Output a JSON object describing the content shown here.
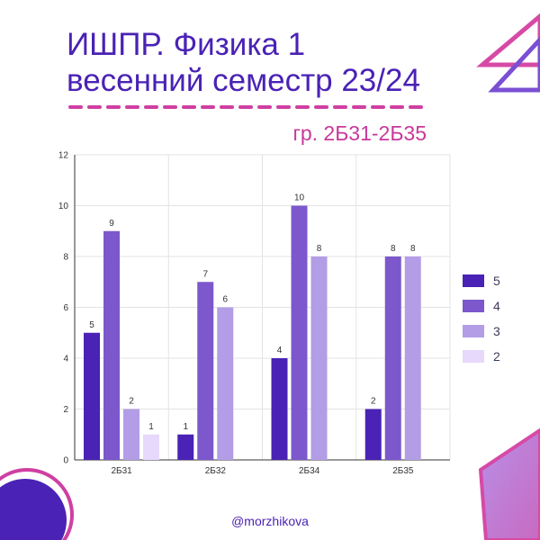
{
  "header": {
    "title_line1": "ИШПР. Физика 1",
    "title_line2": "весенний семестр 23/24",
    "subtitle": "гр. 2Б31-2Б35"
  },
  "footer": {
    "handle": "@morzhikova"
  },
  "colors": {
    "accent": "#c8399a",
    "title": "#4a22b5",
    "series": [
      "#4a22b5",
      "#7c58cc",
      "#b39de6",
      "#e6d9fb"
    ]
  },
  "chart_data": {
    "type": "bar",
    "categories": [
      "2Б31",
      "2Б32",
      "2Б34",
      "2Б35"
    ],
    "series": [
      {
        "name": "5",
        "values": [
          5,
          1,
          4,
          2
        ]
      },
      {
        "name": "4",
        "values": [
          9,
          7,
          10,
          8
        ]
      },
      {
        "name": "3",
        "values": [
          2,
          6,
          8,
          8
        ]
      },
      {
        "name": "2",
        "values": [
          1,
          null,
          null,
          null
        ]
      }
    ],
    "ylim": [
      0,
      12
    ],
    "yticks": [
      0,
      2,
      4,
      6,
      8,
      10,
      12
    ],
    "grid": true,
    "legend": "right",
    "data_labels": true
  }
}
